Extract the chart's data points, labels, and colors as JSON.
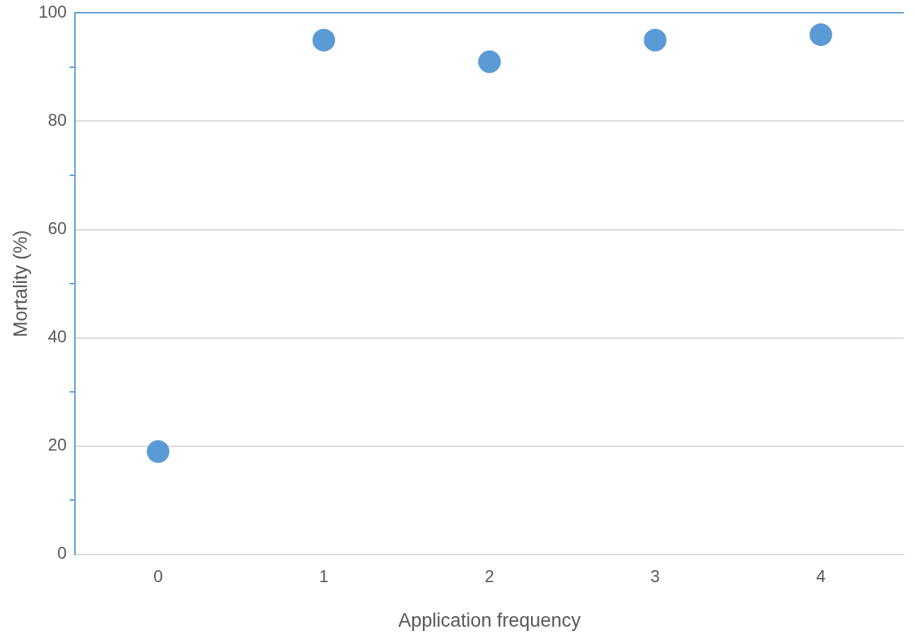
{
  "chart_data": {
    "type": "scatter",
    "xlabel": "Application frequency",
    "ylabel": "Mortality (%)",
    "categories": [
      "0",
      "1",
      "2",
      "3",
      "4"
    ],
    "series": [
      {
        "color": "#5b9bd5",
        "values": [
          19,
          95,
          91,
          95,
          96
        ]
      }
    ],
    "ylim": [
      0,
      100
    ],
    "yticks": [
      0,
      {
        "value": 10,
        "label": null
      },
      20,
      {
        "value": 30,
        "label": null
      },
      40,
      {
        "value": 50,
        "label": null
      },
      60,
      {
        "value": 70,
        "label": null
      },
      80,
      {
        "value": 90,
        "label": null
      },
      100
    ],
    "grid": "y",
    "marker": "circle",
    "legend": false
  }
}
